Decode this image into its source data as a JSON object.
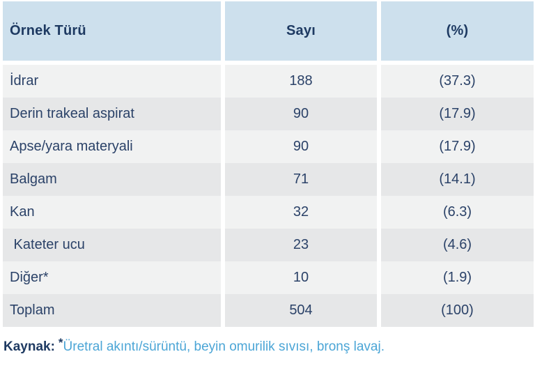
{
  "colors": {
    "header_bg": "#cde0ed",
    "row_light": "#f1f2f2",
    "row_dark": "#e6e7e8",
    "text_navy": "#1e3a62",
    "body_text_navy": "#2b4268",
    "footnote_blue": "#4ba5d6",
    "background": "#ffffff"
  },
  "table": {
    "columns": [
      {
        "label": "Örnek Türü",
        "align": "left"
      },
      {
        "label": "Sayı",
        "align": "center"
      },
      {
        "label": "(%)",
        "align": "center"
      }
    ],
    "rows": [
      {
        "label": "İdrar",
        "count": "188",
        "percent": "(37.3)"
      },
      {
        "label": "Derin trakeal aspirat",
        "count": "90",
        "percent": "(17.9)"
      },
      {
        "label": "Apse/yara materyali",
        "count": "90",
        "percent": "(17.9)"
      },
      {
        "label": "Balgam",
        "count": "71",
        "percent": "(14.1)"
      },
      {
        "label": "Kan",
        "count": "32",
        "percent": "(6.3)"
      },
      {
        "label": " Kateter ucu",
        "count": "23",
        "percent": "(4.6)"
      },
      {
        "label": "Diğer*",
        "count": "10",
        "percent": "(1.9)"
      },
      {
        "label": "Toplam",
        "count": "504",
        "percent": "(100)"
      }
    ]
  },
  "footnote": {
    "prefix": "Kaynak:",
    "asterisk": "*",
    "text": "Üretral akıntı/sürüntü, beyin omurilik sıvısı, bronş lavaj."
  },
  "chart_data": {
    "type": "table",
    "title": "",
    "columns": [
      "Örnek Türü",
      "Sayı",
      "(%)"
    ],
    "rows": [
      [
        "İdrar",
        188,
        37.3
      ],
      [
        "Derin trakeal aspirat",
        90,
        17.9
      ],
      [
        "Apse/yara materyali",
        90,
        17.9
      ],
      [
        "Balgam",
        71,
        14.1
      ],
      [
        "Kan",
        32,
        6.3
      ],
      [
        "Kateter ucu",
        23,
        4.6
      ],
      [
        "Diğer*",
        10,
        1.9
      ],
      [
        "Toplam",
        504,
        100
      ]
    ],
    "footnote": "Kaynak: *Üretral akıntı/sürüntü, beyin omurilik sıvısı, bronş lavaj."
  }
}
